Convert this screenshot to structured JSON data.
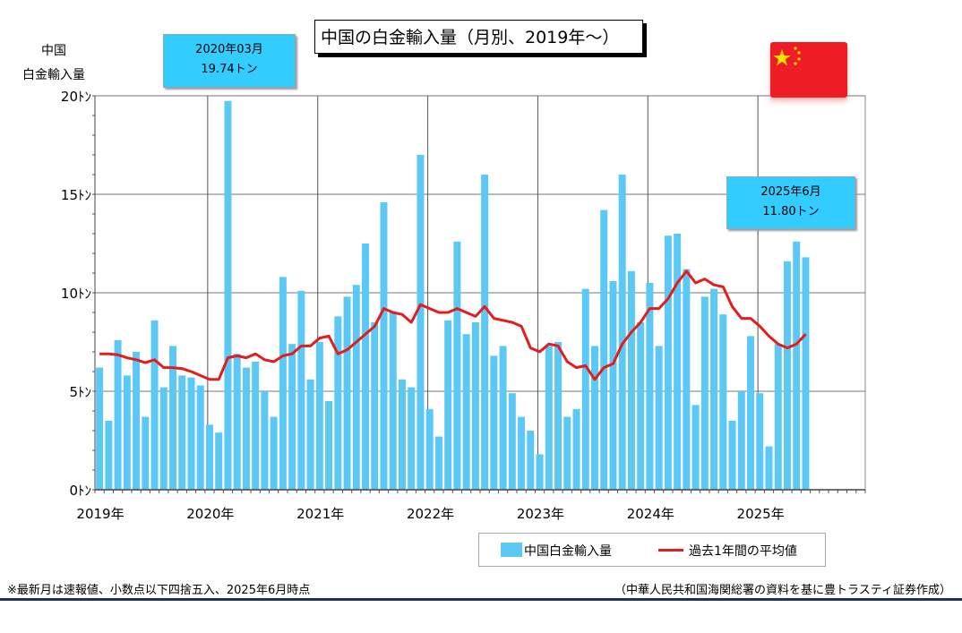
{
  "chart_data": {
    "type": "bar",
    "title": "中国の白金輸入量（月別、2019年～）",
    "ylabel_line1": "中国",
    "ylabel_line2": "白金輸入量",
    "ylim": [
      0,
      20
    ],
    "yticks": [
      {
        "value": 0,
        "label": "0ﾄﾝ"
      },
      {
        "value": 5,
        "label": "5ﾄﾝ"
      },
      {
        "value": 10,
        "label": "10ﾄﾝ"
      },
      {
        "value": 15,
        "label": "15ﾄﾝ"
      },
      {
        "value": 20,
        "label": "20ﾄﾝ"
      }
    ],
    "xticks": [
      "2019年",
      "2020年",
      "2021年",
      "2022年",
      "2023年",
      "2024年",
      "2025年"
    ],
    "months_total": 84,
    "grid": true,
    "series": [
      {
        "name": "中国白金輸入量",
        "kind": "bar",
        "values": [
          6.2,
          3.5,
          7.6,
          5.8,
          7.0,
          3.7,
          8.6,
          5.2,
          7.3,
          5.8,
          5.7,
          5.3,
          3.3,
          2.9,
          19.74,
          6.9,
          6.2,
          6.5,
          5.0,
          3.7,
          10.8,
          7.4,
          10.1,
          5.6,
          7.5,
          4.5,
          8.8,
          9.8,
          10.4,
          12.5,
          8.5,
          14.6,
          9.0,
          5.6,
          5.2,
          17.0,
          4.1,
          2.7,
          8.6,
          12.6,
          7.9,
          8.5,
          16.0,
          6.8,
          7.3,
          4.9,
          3.7,
          3.0,
          1.8,
          7.3,
          7.5,
          3.7,
          4.1,
          10.2,
          7.3,
          14.2,
          10.6,
          16.0,
          11.1,
          8.5,
          10.5,
          7.3,
          12.9,
          13.0,
          11.2,
          4.3,
          9.8,
          10.2,
          8.9,
          3.5,
          5.0,
          7.8,
          4.9,
          2.2,
          7.4,
          11.6,
          12.6,
          11.8
        ]
      },
      {
        "name": "過去1年間の平均値",
        "kind": "line",
        "color": "#e41c1c",
        "values": [
          6.9,
          6.9,
          6.85,
          6.7,
          6.6,
          6.45,
          6.6,
          6.2,
          6.2,
          6.15,
          6.0,
          5.8,
          5.6,
          5.6,
          6.7,
          6.8,
          6.7,
          6.9,
          6.6,
          6.5,
          6.8,
          6.9,
          7.3,
          7.3,
          7.7,
          7.8,
          6.9,
          7.1,
          7.5,
          7.9,
          8.3,
          9.2,
          9.0,
          8.9,
          8.5,
          9.4,
          9.2,
          9.0,
          9.0,
          9.2,
          9.0,
          8.8,
          9.3,
          8.7,
          8.6,
          8.5,
          8.3,
          7.2,
          7.0,
          7.4,
          7.3,
          6.5,
          6.2,
          6.3,
          5.6,
          6.2,
          6.4,
          7.4,
          8.0,
          8.5,
          9.2,
          9.2,
          9.7,
          10.5,
          11.1,
          10.5,
          10.7,
          10.4,
          10.3,
          9.3,
          8.7,
          8.7,
          8.3,
          7.8,
          7.4,
          7.2,
          7.4,
          7.9
        ]
      }
    ],
    "callouts": [
      {
        "line1": "2020年03月",
        "line2": "19.74トン"
      },
      {
        "line1": "2025年6月",
        "line2": "11.80トン"
      }
    ],
    "legend_placement": "bottom-right"
  },
  "notes": {
    "footnote": "※最新月は速報値、小数点以下四捨五入、2025年6月時点",
    "source": "（中華人民共和国海関総署の資料を基に豊トラスティ証券作成）"
  },
  "colors": {
    "bar": "#5bc8f5",
    "line": "#e41c1c",
    "callout": "#33ccff",
    "flag_red": "#ee1c25",
    "flag_star": "#ffde00",
    "rule": "#1f2f6b"
  }
}
